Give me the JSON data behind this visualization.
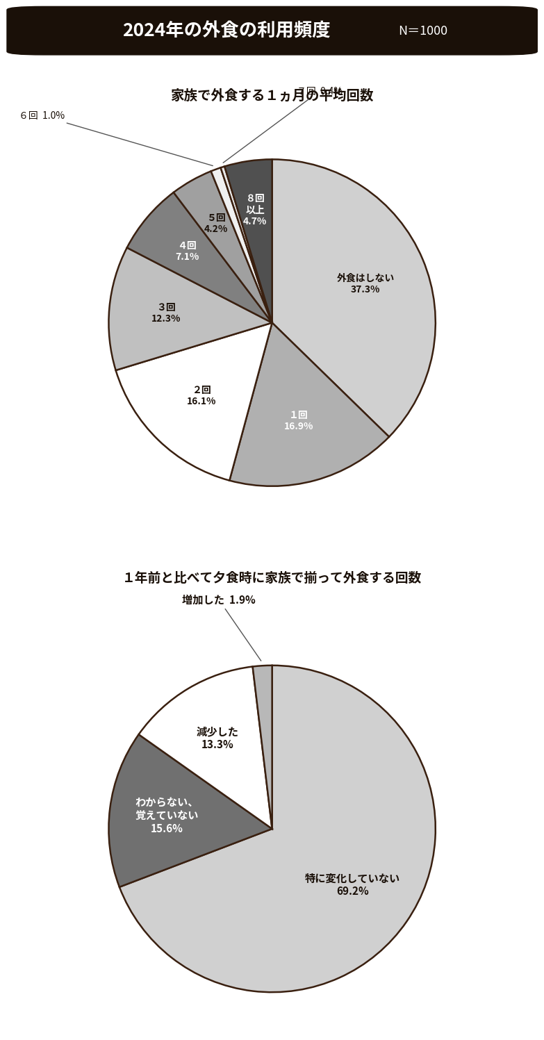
{
  "title": "2024年の外食の利用頻度",
  "title_n": "N＝1000",
  "chart1_title": "家族で外食する１ヵ月の平均回数",
  "chart1_values": [
    37.3,
    16.9,
    16.1,
    12.3,
    7.1,
    4.2,
    1.0,
    0.4,
    4.7
  ],
  "chart1_colors": [
    "#d0d0d0",
    "#b0b0b0",
    "#ffffff",
    "#c0c0c0",
    "#808080",
    "#a0a0a0",
    "#f0f0f0",
    "#e8e8e8",
    "#505050"
  ],
  "chart1_inside_labels": [
    "外食はしない\n37.3%",
    "１回\n16.9%",
    "２回\n16.1%",
    "３回\n12.3%",
    "４回\n7.1%",
    "５回\n4.2%",
    "",
    "",
    "８回\n以上\n4.7%"
  ],
  "chart1_text_colors": [
    "#1a1008",
    "#ffffff",
    "#1a1008",
    "#1a1008",
    "#ffffff",
    "#1a1008",
    "#1a1008",
    "#1a1008",
    "#ffffff"
  ],
  "chart1_outside_label_6": "６回  1.0%",
  "chart1_outside_label_7": "７回  0.4%",
  "chart2_title": "１年前と比べて夕食時に家族で揃って外食する回数",
  "chart2_values": [
    69.2,
    15.6,
    13.3,
    1.9
  ],
  "chart2_colors": [
    "#d0d0d0",
    "#707070",
    "#ffffff",
    "#b8b8b8"
  ],
  "chart2_inside_labels": [
    "特に変化していない\n69.2%",
    "わからない、\n覚えていない\n15.6%",
    "減少した\n13.3%",
    ""
  ],
  "chart2_text_colors": [
    "#1a1008",
    "#ffffff",
    "#1a1008",
    "#1a1008"
  ],
  "chart2_outside_label_3": "増加した  1.9%",
  "bg_color": "#ffffff",
  "title_bg_color": "#1a1008",
  "title_text_color": "#ffffff",
  "border_color": "#3a2010"
}
